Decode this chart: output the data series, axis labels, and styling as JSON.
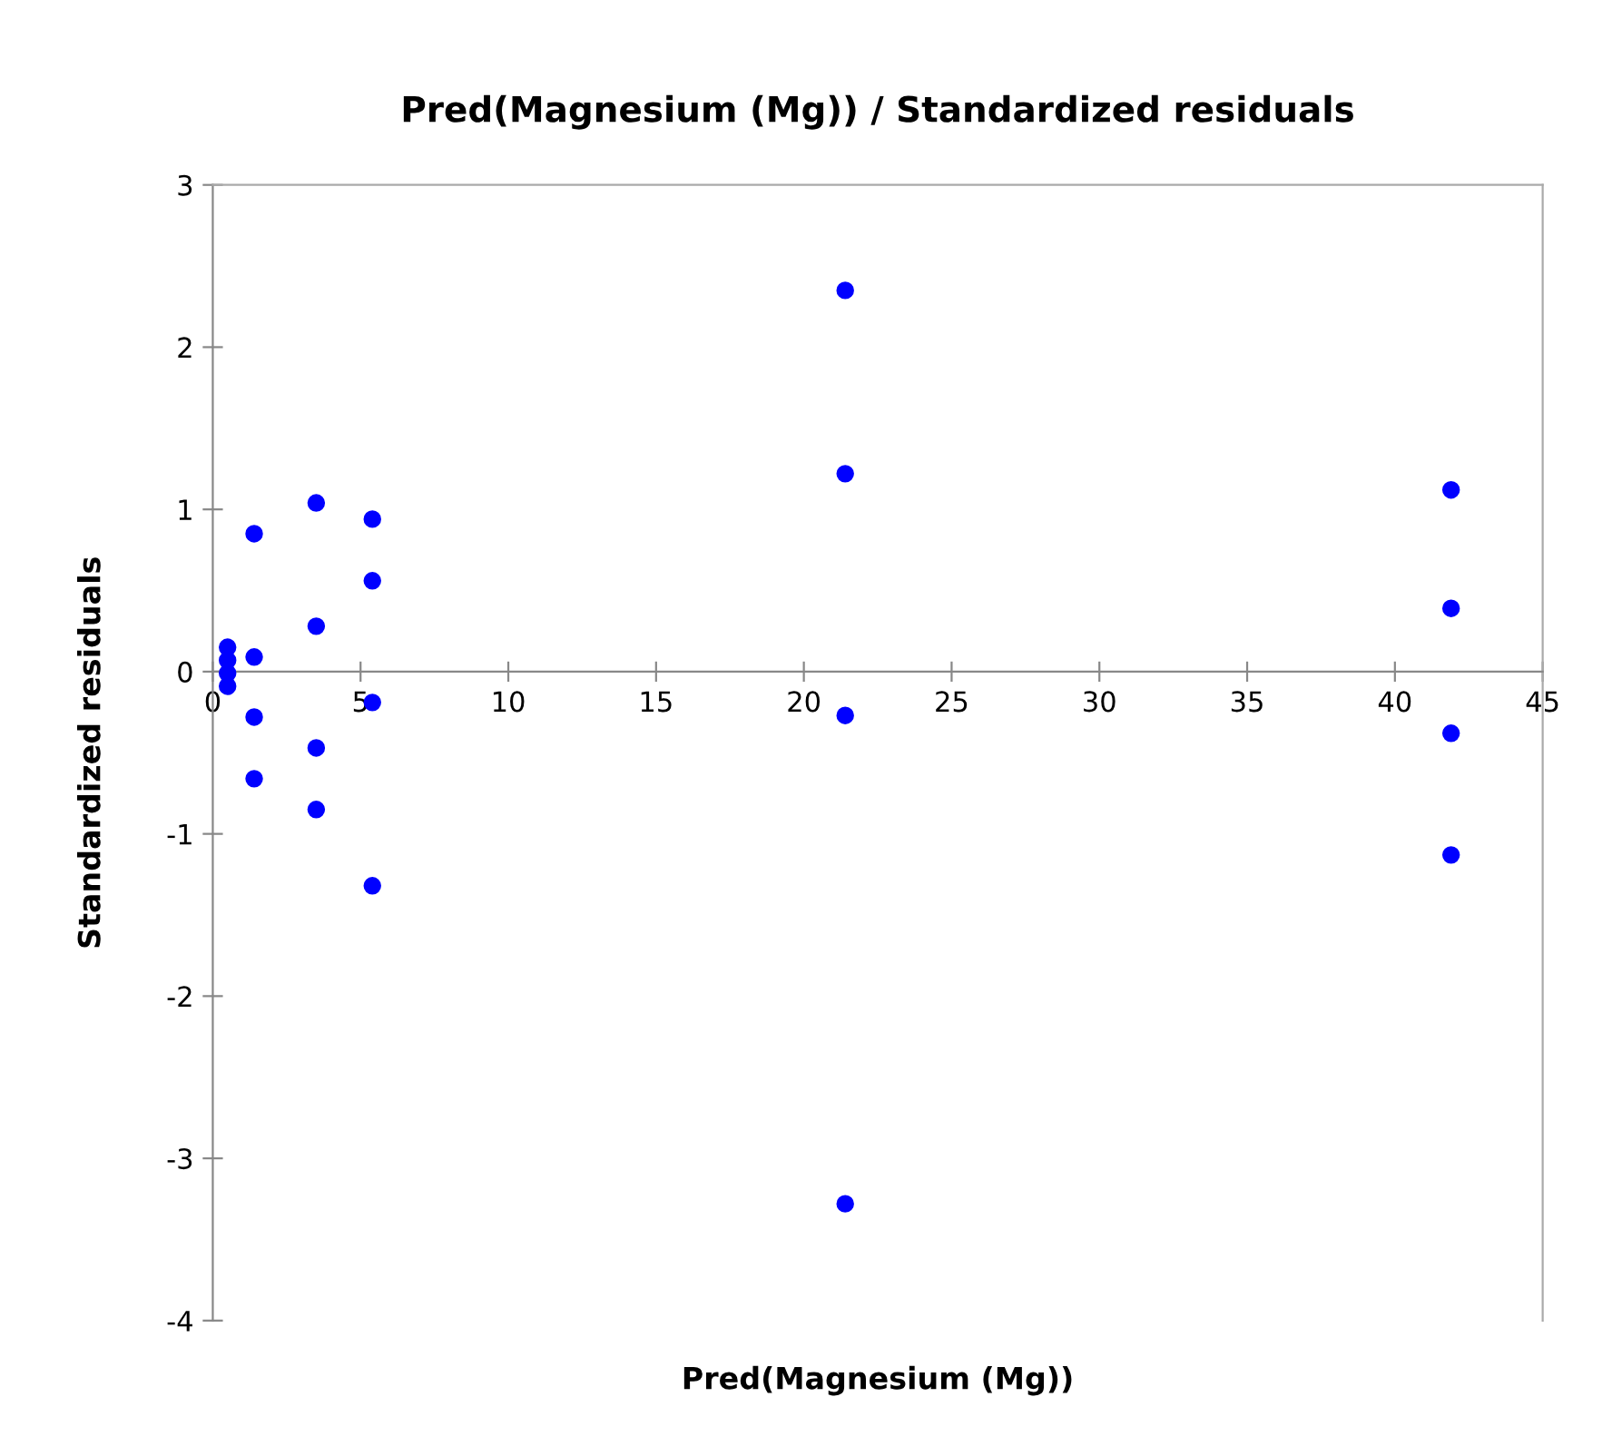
{
  "chart_data": {
    "type": "scatter",
    "title": "Pred(Magnesium (Mg)) / Standardized residuals",
    "xlabel": "Pred(Magnesium (Mg))",
    "ylabel": "Standardized residuals",
    "xlim": [
      0,
      45
    ],
    "xticks": [
      0,
      5,
      10,
      15,
      20,
      25,
      30,
      35,
      40,
      45
    ],
    "ylim": [
      -4,
      3
    ],
    "yticks": [
      -4,
      -3,
      -2,
      -1,
      0,
      1,
      2,
      3
    ],
    "marker": "circle",
    "grid": false,
    "legend": false,
    "series": [
      {
        "color": "#0000ff",
        "x": [
          0.5,
          0.5,
          0.5,
          0.5,
          1.4,
          1.4,
          1.4,
          1.4,
          3.5,
          3.5,
          3.5,
          3.5,
          5.4,
          5.4,
          5.4,
          5.4,
          21.4,
          21.4,
          21.4,
          21.4,
          41.9,
          41.9,
          41.9,
          41.9
        ],
        "values": [
          0.15,
          0.07,
          -0.01,
          -0.09,
          0.85,
          0.09,
          -0.28,
          -0.66,
          1.04,
          0.28,
          -0.47,
          -0.85,
          0.94,
          0.56,
          -0.19,
          -1.32,
          2.35,
          1.22,
          -0.27,
          -3.28,
          1.12,
          0.39,
          -0.38,
          -1.13
        ]
      }
    ]
  }
}
